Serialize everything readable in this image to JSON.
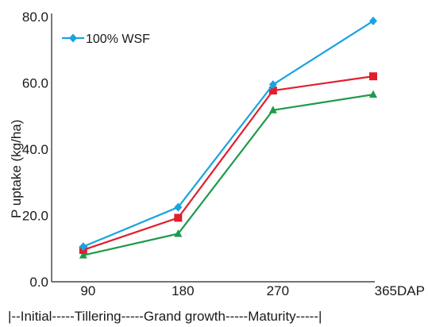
{
  "chart_data": {
    "type": "line",
    "title": "",
    "xlabel": "DAP",
    "ylabel": "P uptake (kg/ha)",
    "x": [
      90,
      180,
      270,
      365
    ],
    "x_tick_labels": [
      "90",
      "180",
      "270",
      "365"
    ],
    "xlim": [
      60,
      365
    ],
    "ylim": [
      0,
      80
    ],
    "y_ticks": [
      0,
      20,
      40,
      60,
      80
    ],
    "y_tick_labels": [
      "0.0",
      "20.0",
      "40.0",
      "60.0",
      "80.0"
    ],
    "grid": false,
    "legend_position": "top-left",
    "stage_label": "|--Initial-----Tillering-----Grand growth-----Maturity-----|",
    "series": [
      {
        "name": "100% WSF",
        "color": "#1aa3e0",
        "marker": "diamond",
        "values": [
          10.6,
          22.5,
          59.5,
          78.7
        ]
      },
      {
        "name": "",
        "color": "#e0202c",
        "marker": "square",
        "values": [
          9.6,
          19.3,
          57.7,
          62.0
        ]
      },
      {
        "name": "",
        "color": "#1e9a4a",
        "marker": "triangle",
        "values": [
          8.0,
          14.5,
          51.8,
          56.5
        ]
      }
    ]
  }
}
